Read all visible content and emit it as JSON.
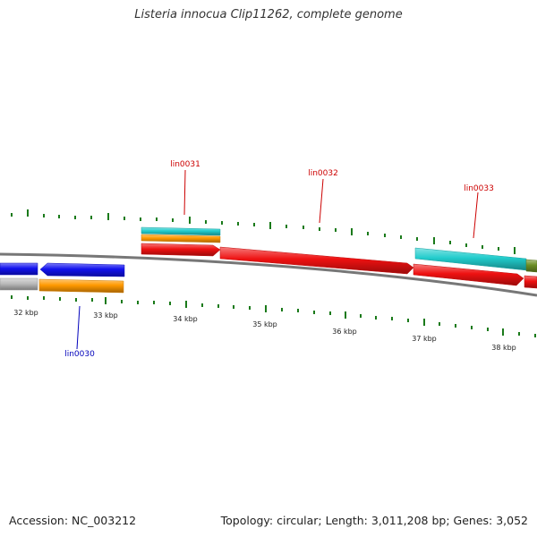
{
  "title": "Listeria innocua Clip11262, complete genome",
  "footer": {
    "accession": "Accession: NC_003212",
    "summary": "Topology: circular; Length: 3,011,208 bp; Genes: 3,052"
  },
  "colors": {
    "backbone": "#777777",
    "tick": "#1a7a1a",
    "gene_label_forward": "#cc0000",
    "gene_label_reverse": "#0000bb",
    "red": "#ee1111",
    "blue": "#1111ee",
    "orange": "#ff9900",
    "cyan": "#22cccc",
    "grey": "#bbbbbb",
    "olive": "#6b8e23"
  },
  "scale_labels": [
    "32 kbp",
    "33 kbp",
    "34 kbp",
    "35 kbp",
    "36 kbp",
    "37 kbp",
    "38 kbp"
  ],
  "gene_labels": [
    {
      "text": "lin0030",
      "strand": "reverse"
    },
    {
      "text": "lin0031",
      "strand": "forward"
    },
    {
      "text": "lin0032",
      "strand": "forward"
    },
    {
      "text": "lin0033",
      "strand": "forward"
    }
  ]
}
